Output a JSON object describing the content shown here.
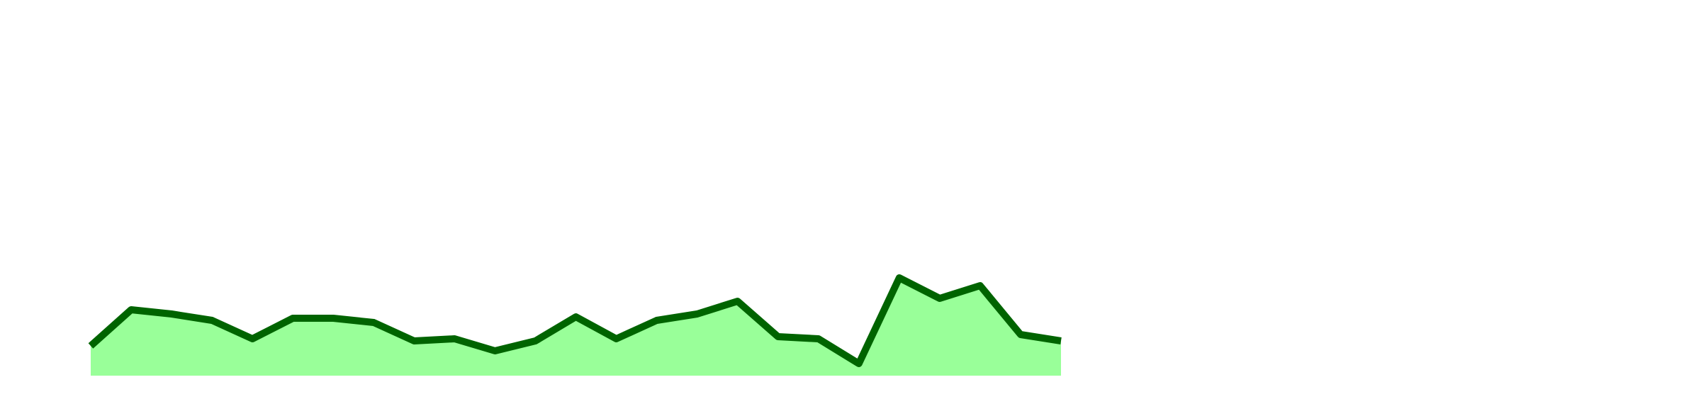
{
  "chart_data": {
    "type": "area",
    "categories": [
      null,
      null,
      null,
      null,
      null,
      null,
      null,
      null,
      null,
      null,
      null,
      null,
      null,
      null,
      null,
      null,
      null,
      null,
      null,
      null,
      null,
      null,
      null,
      null,
      null
    ],
    "series": [
      {
        "color": "#006400",
        "fill": "#99ff99",
        "values": [
          42,
          93,
          87,
          78,
          52,
          81,
          81,
          75,
          49,
          52,
          35,
          49,
          83,
          52,
          78,
          87,
          105,
          55,
          52,
          17,
          138,
          109,
          127,
          58,
          49
        ]
      }
    ],
    "ylim": [
      0,
      530
    ]
  }
}
